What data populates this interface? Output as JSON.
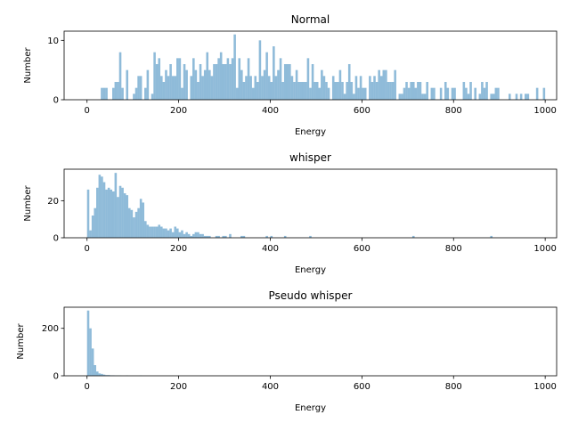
{
  "chart_data": [
    {
      "type": "histogram",
      "title": "Normal",
      "xlabel": "Energy",
      "ylabel": "Number",
      "color": "#1f77b4",
      "alpha": 0.5,
      "xlim": [
        -50,
        1025
      ],
      "xticks": [
        0,
        200,
        400,
        600,
        800,
        1000
      ],
      "ylim": [
        0,
        11.55
      ],
      "yticks": [
        0,
        10
      ],
      "bins": [
        0,
        5,
        10,
        15,
        20,
        25,
        30,
        35,
        40,
        45,
        50,
        55,
        60,
        65,
        70,
        75,
        80,
        85,
        90,
        95,
        100,
        105,
        110,
        115,
        120,
        125,
        130,
        135,
        140,
        145,
        150,
        155,
        160,
        165,
        170,
        175,
        180,
        185,
        190,
        195,
        200,
        205,
        210,
        215,
        220,
        225,
        230,
        235,
        240,
        245,
        250,
        255,
        260,
        265,
        270,
        275,
        280,
        285,
        290,
        295,
        300,
        305,
        310,
        315,
        320,
        325,
        330,
        335,
        340,
        345,
        350,
        355,
        360,
        365,
        370,
        375,
        380,
        385,
        390,
        395,
        400,
        405,
        410,
        415,
        420,
        425,
        430,
        435,
        440,
        445,
        450,
        455,
        460,
        465,
        470,
        475,
        480,
        485,
        490,
        495,
        500,
        505,
        510,
        515,
        520,
        525,
        530,
        535,
        540,
        545,
        550,
        555,
        560,
        565,
        570,
        575,
        580,
        585,
        590,
        595,
        600,
        605,
        610,
        615,
        620,
        625,
        630,
        635,
        640,
        645,
        650,
        655,
        660,
        665,
        670,
        675,
        680,
        685,
        690,
        695,
        700,
        705,
        710,
        715,
        720,
        725,
        730,
        735,
        740,
        745,
        750,
        755,
        760,
        765,
        770,
        775,
        780,
        785,
        790,
        795,
        800,
        805,
        810,
        815,
        820,
        825,
        830,
        835,
        840,
        845,
        850,
        855,
        860,
        865,
        870,
        875,
        880,
        885,
        890,
        895,
        900,
        905,
        910,
        915,
        920,
        925,
        930,
        935,
        940,
        945,
        950,
        955,
        960,
        965,
        970,
        975,
        980,
        985,
        990,
        995,
        1000
      ],
      "counts": [
        0,
        0,
        0,
        0,
        0,
        0,
        2,
        2,
        2,
        0,
        0,
        2,
        3,
        3,
        8,
        2,
        0,
        5,
        0,
        0,
        1,
        2,
        4,
        4,
        0,
        2,
        5,
        0,
        1,
        8,
        6,
        7,
        4,
        3,
        5,
        4,
        6,
        4,
        4,
        7,
        7,
        2,
        6,
        5,
        0,
        4,
        7,
        5,
        3,
        6,
        4,
        5,
        8,
        5,
        4,
        6,
        6,
        7,
        8,
        6,
        6,
        7,
        6,
        7,
        11,
        2,
        7,
        5,
        3,
        4,
        7,
        4,
        2,
        4,
        3,
        10,
        4,
        5,
        8,
        4,
        3,
        9,
        4,
        5,
        7,
        3,
        6,
        6,
        6,
        4,
        3,
        5,
        3,
        3,
        3,
        3,
        7,
        2,
        6,
        3,
        3,
        2,
        5,
        4,
        3,
        2,
        0,
        4,
        3,
        3,
        5,
        3,
        1,
        3,
        6,
        3,
        1,
        4,
        2,
        4,
        2,
        2,
        0,
        4,
        3,
        4,
        3,
        5,
        4,
        5,
        5,
        3,
        3,
        3,
        5,
        0,
        1,
        1,
        2,
        3,
        2,
        3,
        3,
        2,
        3,
        3,
        1,
        1,
        3,
        0,
        2,
        2,
        0,
        0,
        2,
        0,
        3,
        2,
        0,
        2,
        2,
        0,
        0,
        0,
        3,
        2,
        1,
        3,
        0,
        2,
        0,
        1,
        3,
        2,
        3,
        0,
        1,
        1,
        2,
        2,
        0,
        0,
        0,
        0,
        1,
        0,
        0,
        1,
        0,
        1,
        0,
        1,
        1,
        0,
        0,
        0,
        2,
        0,
        0,
        2
      ]
    },
    {
      "type": "histogram",
      "title": "whisper",
      "xlabel": "Energy",
      "ylabel": "Number",
      "color": "#1f77b4",
      "alpha": 0.5,
      "xlim": [
        -50,
        1025
      ],
      "xticks": [
        0,
        200,
        400,
        600,
        800,
        1000
      ],
      "ylim": [
        0,
        37
      ],
      "yticks": [
        0,
        20
      ],
      "bins": [
        0,
        5,
        10,
        15,
        20,
        25,
        30,
        35,
        40,
        45,
        50,
        55,
        60,
        65,
        70,
        75,
        80,
        85,
        90,
        95,
        100,
        105,
        110,
        115,
        120,
        125,
        130,
        135,
        140,
        145,
        150,
        155,
        160,
        165,
        170,
        175,
        180,
        185,
        190,
        195,
        200,
        205,
        210,
        215,
        220,
        225,
        230,
        235,
        240,
        245,
        250,
        255,
        260,
        265,
        270,
        275,
        280,
        285,
        290,
        295,
        300,
        305,
        310,
        315,
        320,
        325,
        330,
        335,
        340,
        345,
        350,
        355,
        360,
        365,
        370,
        375,
        380,
        385,
        390,
        395,
        400,
        405,
        410,
        415,
        420,
        425,
        430,
        435,
        440,
        445,
        450,
        455,
        460,
        465,
        470,
        475,
        480,
        485,
        490,
        495,
        500,
        505,
        510,
        515,
        520,
        525,
        530,
        535,
        540,
        545,
        550,
        555,
        560,
        565,
        570,
        575,
        580,
        585,
        590,
        595,
        600,
        605,
        610,
        615,
        620,
        625,
        630,
        635,
        640,
        645,
        650,
        655,
        660,
        665,
        670,
        675,
        680,
        685,
        690,
        695,
        700,
        705,
        710,
        715,
        720,
        725,
        730,
        735,
        740,
        745,
        750,
        755,
        760,
        765,
        770,
        775,
        780,
        785,
        790,
        795,
        800,
        805,
        810,
        815,
        820,
        825,
        830,
        835,
        840,
        845,
        850,
        855,
        860,
        865,
        870,
        875,
        880,
        885,
        890,
        895,
        900,
        905,
        910,
        915,
        920,
        925,
        930,
        935,
        940,
        945,
        950,
        955,
        960,
        965,
        970,
        975,
        980,
        985,
        990,
        995,
        1000
      ],
      "counts": [
        26,
        4,
        12,
        16,
        27,
        34,
        33,
        30,
        26,
        27,
        26,
        25,
        35,
        22,
        28,
        27,
        24,
        23,
        16,
        15,
        11,
        14,
        16,
        21,
        19,
        9,
        7,
        6,
        6,
        6,
        6,
        7,
        6,
        5,
        5,
        4,
        5,
        3,
        6,
        5,
        3,
        4,
        2,
        3,
        2,
        1,
        2,
        3,
        3,
        2,
        2,
        1,
        1,
        1,
        0,
        0,
        1,
        1,
        0,
        1,
        1,
        0,
        2,
        0,
        0,
        0,
        0,
        1,
        1,
        0,
        0,
        0,
        0,
        0,
        0,
        0,
        0,
        0,
        1,
        0,
        1,
        0,
        0,
        0,
        0,
        0,
        1,
        0,
        0,
        0,
        0,
        0,
        0,
        0,
        0,
        0,
        0,
        1,
        0,
        0,
        0,
        0,
        0,
        0,
        0,
        0,
        0,
        0,
        0,
        0,
        0,
        0,
        0,
        0,
        0,
        0,
        0,
        0,
        0,
        0,
        0,
        0,
        0,
        0,
        0,
        0,
        0,
        0,
        0,
        0,
        0,
        0,
        0,
        0,
        0,
        0,
        0,
        0,
        0,
        0,
        0,
        0,
        1,
        0,
        0,
        0,
        0,
        0,
        0,
        0,
        0,
        0,
        0,
        0,
        0,
        0,
        0,
        0,
        0,
        0,
        0,
        0,
        0,
        0,
        0,
        0,
        0,
        0,
        0,
        0,
        0,
        0,
        0,
        0,
        0,
        0,
        1,
        0,
        0,
        0,
        0,
        0,
        0,
        0,
        0,
        0,
        0,
        0,
        0,
        0,
        0,
        0,
        0,
        0,
        0,
        0,
        0,
        0,
        0,
        0
      ]
    },
    {
      "type": "histogram",
      "title": "Pseudo whisper",
      "xlabel": "Energy",
      "ylabel": "Number",
      "color": "#1f77b4",
      "alpha": 0.5,
      "xlim": [
        -50,
        1025
      ],
      "xticks": [
        0,
        200,
        400,
        600,
        800,
        1000
      ],
      "ylim": [
        0,
        289
      ],
      "yticks": [
        0,
        200
      ],
      "bins": [
        0,
        5,
        10,
        15,
        20,
        25,
        30,
        35,
        40,
        45,
        50,
        55,
        60,
        65,
        70,
        75,
        80,
        85,
        90,
        95,
        100,
        105,
        110,
        115,
        120,
        125,
        130,
        135,
        140,
        145,
        150,
        155,
        160,
        165,
        170,
        175,
        180,
        185,
        190,
        195,
        200,
        205,
        210,
        215,
        220,
        225,
        230,
        235,
        240,
        245,
        250,
        255,
        260,
        265,
        270,
        275,
        280,
        285,
        290,
        295,
        300,
        305,
        310,
        315,
        320,
        325,
        330,
        335,
        340,
        345,
        350,
        355,
        360,
        365,
        370,
        375,
        380,
        385,
        390,
        395,
        400,
        405,
        410,
        415,
        420,
        425,
        430,
        435,
        440,
        445,
        450,
        455,
        460,
        465,
        470,
        475,
        480,
        485,
        490,
        495,
        500,
        505,
        510,
        515,
        520,
        525,
        530,
        535,
        540,
        545,
        550,
        555,
        560,
        565,
        570,
        575,
        580,
        585,
        590,
        595,
        600,
        605,
        610,
        615,
        620,
        625,
        630,
        635,
        640,
        645,
        650,
        655,
        660,
        665,
        670,
        675,
        680,
        685,
        690,
        695,
        700,
        705,
        710,
        715,
        720,
        725,
        730,
        735,
        740,
        745,
        750,
        755,
        760,
        765,
        770,
        775,
        780,
        785,
        790,
        795,
        800,
        805,
        810,
        815,
        820,
        825,
        830,
        835,
        840,
        845,
        850,
        855,
        860,
        865,
        870,
        875,
        880,
        885,
        890,
        895,
        900,
        905,
        910,
        915,
        920,
        925,
        930,
        935,
        940,
        945,
        950,
        955,
        960,
        965,
        970,
        975,
        980,
        985,
        990,
        995,
        1000
      ],
      "counts": [
        275,
        200,
        115,
        45,
        18,
        10,
        8,
        5,
        3,
        3,
        2,
        2,
        1,
        1,
        1,
        0,
        0,
        1,
        0,
        0,
        0,
        0,
        0,
        1,
        0,
        0,
        0,
        0,
        0,
        0,
        0,
        0,
        0,
        0,
        0,
        0,
        0,
        0,
        0,
        0,
        0,
        0,
        0,
        0,
        0,
        0,
        0,
        0,
        0,
        0,
        0,
        0,
        0,
        0,
        0,
        0,
        0,
        0,
        0,
        0,
        0,
        0,
        0,
        0,
        0,
        0,
        0,
        0,
        0,
        0,
        0,
        0,
        0,
        0,
        0,
        0,
        0,
        0,
        0,
        0,
        0,
        0,
        0,
        0,
        0,
        0,
        0,
        0,
        0,
        0,
        0,
        0,
        0,
        0,
        0,
        0,
        0,
        0,
        0,
        0,
        0,
        0,
        0,
        0,
        0,
        0,
        0,
        0,
        0,
        0,
        0,
        0,
        0,
        0,
        0,
        0,
        0,
        0,
        0,
        0,
        0,
        0,
        0,
        0,
        0,
        0,
        0,
        0,
        0,
        0,
        0,
        0,
        0,
        0,
        0,
        0,
        0,
        0,
        0,
        0,
        0,
        0,
        0,
        0,
        0,
        0,
        0,
        0,
        0,
        0,
        0,
        0,
        0,
        0,
        0,
        0,
        0,
        0,
        0,
        0,
        0,
        0,
        0,
        0,
        0,
        0,
        0,
        0,
        0,
        0,
        0,
        0,
        0,
        0,
        0,
        0,
        0,
        0,
        0,
        0,
        0,
        0,
        0,
        0,
        0,
        0,
        0,
        0,
        0,
        0,
        0,
        0,
        0,
        0,
        0,
        0,
        0,
        0,
        0,
        0
      ]
    }
  ]
}
